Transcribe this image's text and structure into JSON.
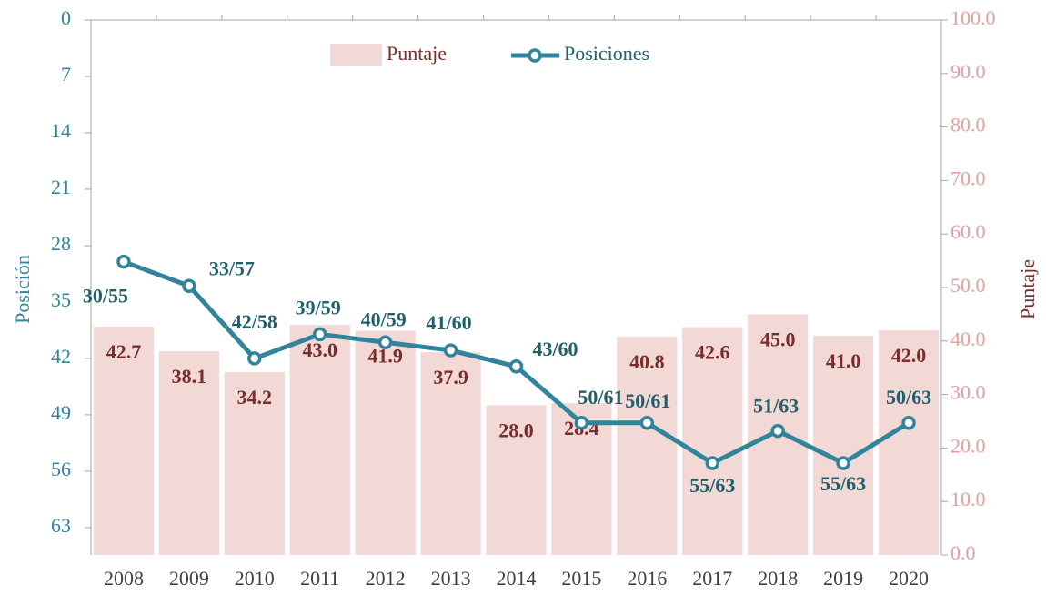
{
  "chart_data": {
    "type": "bar-line",
    "categories": [
      "2008",
      "2009",
      "2010",
      "2011",
      "2012",
      "2013",
      "2014",
      "2015",
      "2016",
      "2017",
      "2018",
      "2019",
      "2020"
    ],
    "y_label": "Posición",
    "y2_label": "Puntaje",
    "ylim": [
      0,
      66.4
    ],
    "y_inverted": true,
    "yticks": [
      0,
      7,
      14,
      21,
      28,
      35,
      42,
      49,
      56,
      63
    ],
    "y2lim": [
      0,
      100
    ],
    "y2ticks": [
      {
        "value": 0,
        "label": "0.0"
      },
      {
        "value": 10,
        "label": "10.0"
      },
      {
        "value": 20,
        "label": "20.0"
      },
      {
        "value": 30,
        "label": "30.0"
      },
      {
        "value": 40,
        "label": "40.0"
      },
      {
        "value": 50,
        "label": "50.0"
      },
      {
        "value": 60,
        "label": "60.0"
      },
      {
        "value": 70,
        "label": "70.0"
      },
      {
        "value": 80,
        "label": "80.0"
      },
      {
        "value": 90,
        "label": "90.0"
      },
      {
        "value": 100,
        "label": "100.0"
      }
    ],
    "series": [
      {
        "name": "Puntaje",
        "type": "bar",
        "axis": "y2",
        "color": "#f2d9d6",
        "values": [
          42.7,
          38.1,
          34.2,
          43.0,
          41.9,
          37.9,
          28.0,
          28.4,
          40.8,
          42.6,
          45.0,
          41.0,
          42.0
        ],
        "value_labels": [
          "42.7",
          "38.1",
          "34.2",
          "43.0",
          "41.9",
          "37.9",
          "28.0",
          "28.4",
          "40.8",
          "42.6",
          "45.0",
          "41.0",
          "42.0"
        ]
      },
      {
        "name": "Posiciones",
        "type": "line",
        "axis": "y",
        "color": "#31849b",
        "values": [
          30,
          33,
          42,
          39,
          40,
          41,
          43,
          50,
          50,
          55,
          51,
          55,
          50
        ],
        "value_labels": [
          "30/55",
          "33/57",
          "42/58",
          "39/59",
          "40/59",
          "41/60",
          "43/60",
          "50/61",
          "50/61",
          "55/63",
          "51/63",
          "55/63",
          "50/63"
        ]
      }
    ],
    "legend": "top"
  }
}
